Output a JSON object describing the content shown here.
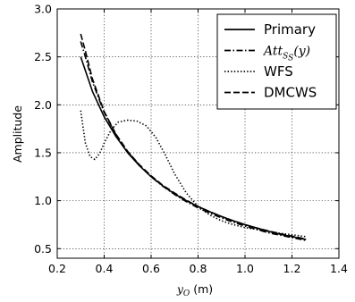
{
  "chart_data": {
    "type": "line",
    "xlabel": "y_O (m)",
    "xlabel_parts": {
      "main": "y",
      "sub": "O",
      "unit": " (m)"
    },
    "ylabel": "Amplitude",
    "xlim": [
      0.2,
      1.4
    ],
    "ylim": [
      0.4,
      3.0
    ],
    "xticks": [
      0.2,
      0.4,
      0.6,
      0.8,
      1.0,
      1.2,
      1.4
    ],
    "xtick_labels": [
      "0.2",
      "0.4",
      "0.6",
      "0.8",
      "1.0",
      "1.2",
      "1.4"
    ],
    "yticks": [
      0.5,
      1.0,
      1.5,
      2.0,
      2.5,
      3.0
    ],
    "ytick_labels": [
      "0.5",
      "1.0",
      "1.5",
      "2.0",
      "2.5",
      "3.0"
    ],
    "grid": true,
    "legend_position": "top-right",
    "series": [
      {
        "name": "Primary",
        "style": "solid",
        "x": [
          0.3,
          0.35,
          0.4,
          0.45,
          0.5,
          0.55,
          0.6,
          0.65,
          0.7,
          0.75,
          0.8,
          0.85,
          0.9,
          0.95,
          1.0,
          1.05,
          1.1,
          1.15,
          1.2,
          1.26
        ],
        "y": [
          2.5,
          2.14,
          1.875,
          1.67,
          1.5,
          1.365,
          1.25,
          1.155,
          1.07,
          1.0,
          0.94,
          0.885,
          0.835,
          0.79,
          0.75,
          0.715,
          0.68,
          0.65,
          0.625,
          0.595
        ]
      },
      {
        "name": "Att_{S_S}(y)",
        "name_parts": {
          "main": "Att",
          "sub": "S",
          "subsub": "S",
          "suffix": "(y)"
        },
        "style": "dashdot",
        "x": [
          0.3,
          0.32,
          0.35,
          0.4,
          0.45,
          0.5,
          0.55,
          0.6,
          0.65,
          0.7,
          0.75,
          0.8,
          0.85,
          0.9,
          0.95,
          1.0,
          1.05,
          1.1,
          1.15,
          1.2,
          1.26
        ],
        "y": [
          2.66,
          2.5,
          2.24,
          1.92,
          1.69,
          1.51,
          1.37,
          1.25,
          1.15,
          1.065,
          0.99,
          0.925,
          0.87,
          0.82,
          0.775,
          0.735,
          0.7,
          0.665,
          0.64,
          0.615,
          0.585
        ]
      },
      {
        "name": "WFS",
        "style": "dotted",
        "x": [
          0.3,
          0.32,
          0.34,
          0.36,
          0.38,
          0.4,
          0.43,
          0.46,
          0.5,
          0.54,
          0.58,
          0.62,
          0.66,
          0.7,
          0.75,
          0.8,
          0.85,
          0.9,
          0.95,
          1.0,
          1.05,
          1.1,
          1.15,
          1.2,
          1.26
        ],
        "y": [
          1.94,
          1.6,
          1.46,
          1.43,
          1.49,
          1.6,
          1.74,
          1.82,
          1.84,
          1.83,
          1.78,
          1.66,
          1.48,
          1.28,
          1.08,
          0.94,
          0.85,
          0.79,
          0.75,
          0.72,
          0.7,
          0.68,
          0.66,
          0.645,
          0.625
        ]
      },
      {
        "name": "DMCWS",
        "style": "dashed",
        "x": [
          0.3,
          0.32,
          0.35,
          0.4,
          0.45,
          0.5,
          0.55,
          0.6,
          0.65,
          0.7,
          0.75,
          0.8,
          0.85,
          0.9,
          0.95,
          1.0,
          1.05,
          1.1,
          1.15,
          1.2,
          1.26
        ],
        "y": [
          2.74,
          2.56,
          2.27,
          1.93,
          1.695,
          1.515,
          1.375,
          1.26,
          1.16,
          1.08,
          1.005,
          0.94,
          0.885,
          0.835,
          0.79,
          0.75,
          0.715,
          0.685,
          0.655,
          0.63,
          0.6
        ]
      }
    ]
  }
}
